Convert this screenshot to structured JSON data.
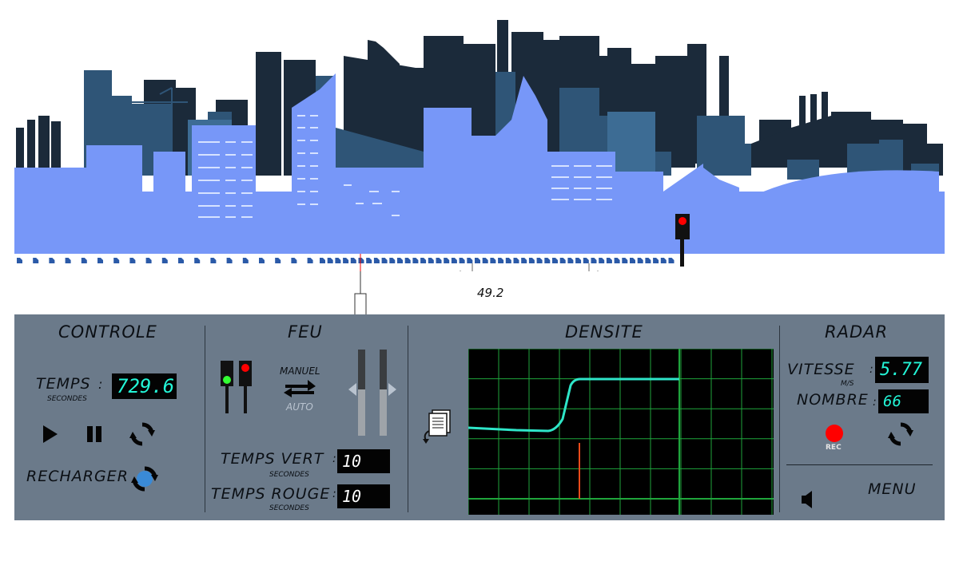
{
  "colors": {
    "panel_bg": "#6b7a8a",
    "digital_text": "#23f5d7",
    "skyline_dark": "#1b2a3a",
    "skyline_mid": "#2f5577",
    "skyline_light": "#3d6c94",
    "skyline_front": "#7797f8",
    "graph_line": "#2ee5c8",
    "graph_grid": "#1fa53c",
    "graph_marker": "#e84a1a",
    "traffic_red": "#ff0000",
    "traffic_green": "#33ff33"
  },
  "road": {
    "radar_distance": "49.2"
  },
  "controle": {
    "title": "CONTROLE",
    "temps_label": "TEMPS",
    "temps_colon": ":",
    "temps_unit": "SECONDES",
    "temps_value": "729.6",
    "play_icon": "play-icon",
    "pause_icon": "pause-icon",
    "reset_icon": "refresh-icon",
    "recharger_label": "RECHARGER",
    "recharger_icon": "reload-icon"
  },
  "feu": {
    "title": "FEU",
    "mode_manual": "MANUEL",
    "mode_auto": "AUTO",
    "temps_vert_label": "TEMPS VERT",
    "temps_vert_unit": "SECONDES",
    "temps_vert_value": "10",
    "temps_rouge_label": "TEMPS ROUGE",
    "temps_rouge_unit": "SECONDES",
    "temps_rouge_value": "10",
    "colon": ":"
  },
  "densite": {
    "title": "DENSITE",
    "export_icon": "document-export-icon"
  },
  "radar": {
    "title": "RADAR",
    "vitesse_label": "VITESSE",
    "vitesse_unit": "M/S",
    "vitesse_value": "5.77",
    "nombre_label": "NOMBRE",
    "nombre_value": "66",
    "colon": ":",
    "rec_label": "REC",
    "menu_label": "MENU"
  }
}
